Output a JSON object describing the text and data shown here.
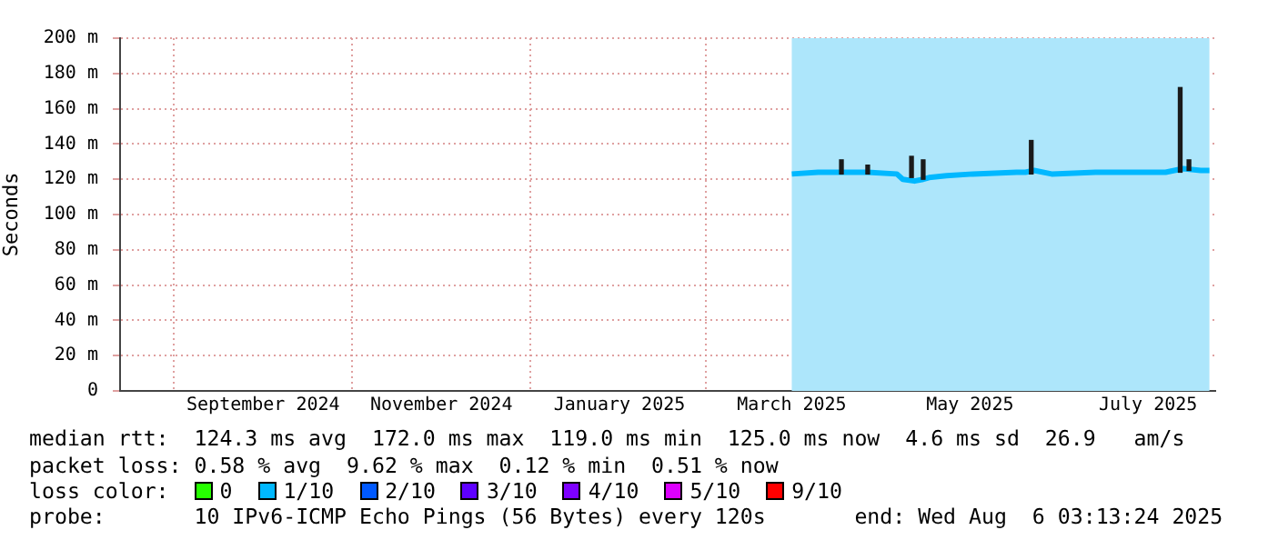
{
  "chart_data": {
    "type": "line",
    "ylabel": "Seconds",
    "legend_title": "loss color:",
    "legend": "bottom left",
    "grid": true,
    "marker": "none",
    "line_style": "solid",
    "xlim": [
      "2024-07-29",
      "2025-08-08"
    ],
    "xticks": [
      {
        "value": "2024-09-16",
        "label": "September 2024"
      },
      {
        "value": "2024-11-16",
        "label": "November 2024"
      },
      {
        "value": "2025-01-16",
        "label": "January 2025"
      },
      {
        "value": "2025-03-16",
        "label": "March 2025"
      },
      {
        "value": "2025-05-16",
        "label": "May 2025"
      },
      {
        "value": "2025-07-16",
        "label": "July 2025"
      }
    ],
    "ylim": [
      0,
      200
    ],
    "yticks": [
      0,
      {
        "value": 20,
        "label": "20 m"
      },
      {
        "value": 40,
        "label": "40 m"
      },
      {
        "value": 60,
        "label": "60 m"
      },
      {
        "value": 80,
        "label": "80 m"
      },
      {
        "value": 100,
        "label": "100 m"
      },
      {
        "value": 120,
        "label": "120 m"
      },
      {
        "value": 140,
        "label": "140 m"
      },
      {
        "value": 160,
        "label": "160 m"
      },
      {
        "value": 180,
        "label": "180 m"
      },
      {
        "value": 200,
        "label": "200 m"
      }
    ],
    "bands": [
      {
        "axis": "x",
        "from": "2025-03-16",
        "to": "2025-08-06",
        "color": "#ade6fb"
      }
    ],
    "series": [
      {
        "type": "bar",
        "color": "#1a1a1a",
        "x": [
          "2025-04-02",
          "2025-04-11",
          "2025-04-26",
          "2025-04-30",
          "2025-06-06",
          "2025-07-27",
          "2025-07-30"
        ],
        "base": [
          123,
          123,
          121,
          120,
          123,
          124,
          125
        ],
        "values": [
          8,
          5,
          12,
          11,
          19,
          48,
          6
        ]
      },
      {
        "name": "0",
        "color": "#26ff00"
      },
      {
        "name": "1/10",
        "color": "#00b8ff",
        "x": [
          "2025-03-16",
          "2025-03-25",
          "2025-04-01",
          "2025-04-11",
          "2025-04-21",
          "2025-04-23",
          "2025-04-27",
          "2025-04-30",
          "2025-05-02",
          "2025-05-08",
          "2025-05-17",
          "2025-06-01",
          "2025-06-04",
          "2025-06-07",
          "2025-06-13",
          "2025-06-28",
          "2025-07-13",
          "2025-07-22",
          "2025-07-28",
          "2025-08-03",
          "2025-08-06"
        ],
        "values": [
          123,
          124,
          124,
          124,
          123,
          120,
          119,
          120,
          121,
          122,
          123,
          124,
          124,
          125,
          123,
          124,
          124,
          124,
          126,
          125,
          125
        ]
      },
      {
        "name": "2/10",
        "color": "#0059ff"
      },
      {
        "name": "3/10",
        "color": "#5e00ff"
      },
      {
        "name": "4/10",
        "color": "#7e00ff"
      },
      {
        "name": "5/10",
        "color": "#dd00ff"
      },
      {
        "name": "9/10",
        "color": "#ff0000"
      }
    ],
    "annotations": [
      "median rtt:  124.3 ms avg  172.0 ms max  119.0 ms min  125.0 ms now  4.6 ms sd  26.9   am/s",
      "packet loss: 0.58 % avg  9.62 % max  0.12 % min  0.51 % now",
      "probe:       10 IPv6-ICMP Echo Pings (56 Bytes) every 120s       end: Wed Aug  6 03:13:24 2025"
    ]
  }
}
